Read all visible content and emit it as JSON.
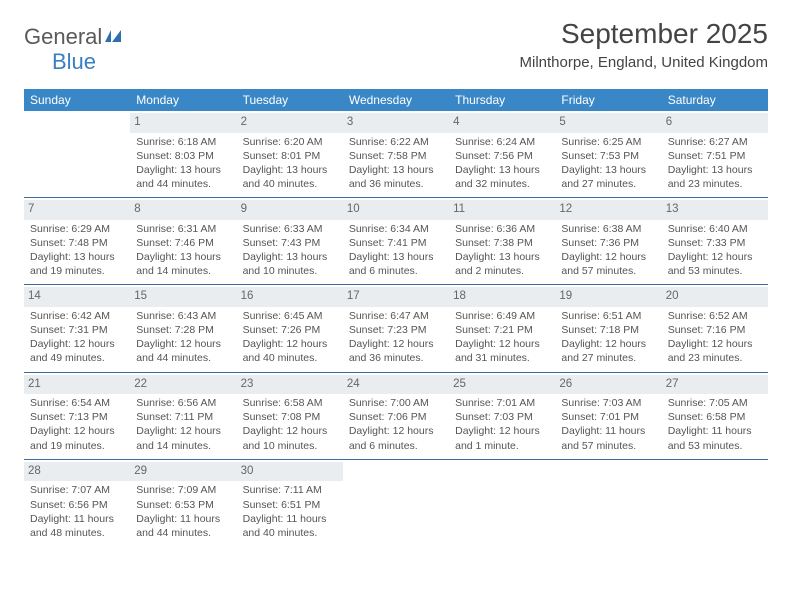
{
  "logo": {
    "text1": "General",
    "text2": "Blue"
  },
  "title": "September 2025",
  "location": "Milnthorpe, England, United Kingdom",
  "colors": {
    "header_bg": "#3a87c7",
    "header_fg": "#ffffff",
    "row_divider": "#3a6ea0",
    "daynum_bg": "#e9edf0",
    "text": "#555555",
    "logo_gray": "#5a5a5a",
    "logo_blue": "#3a7fc4"
  },
  "day_headers": [
    "Sunday",
    "Monday",
    "Tuesday",
    "Wednesday",
    "Thursday",
    "Friday",
    "Saturday"
  ],
  "weeks": [
    [
      {
        "n": "",
        "lines": []
      },
      {
        "n": "1",
        "lines": [
          "Sunrise: 6:18 AM",
          "Sunset: 8:03 PM",
          "Daylight: 13 hours and 44 minutes."
        ]
      },
      {
        "n": "2",
        "lines": [
          "Sunrise: 6:20 AM",
          "Sunset: 8:01 PM",
          "Daylight: 13 hours and 40 minutes."
        ]
      },
      {
        "n": "3",
        "lines": [
          "Sunrise: 6:22 AM",
          "Sunset: 7:58 PM",
          "Daylight: 13 hours and 36 minutes."
        ]
      },
      {
        "n": "4",
        "lines": [
          "Sunrise: 6:24 AM",
          "Sunset: 7:56 PM",
          "Daylight: 13 hours and 32 minutes."
        ]
      },
      {
        "n": "5",
        "lines": [
          "Sunrise: 6:25 AM",
          "Sunset: 7:53 PM",
          "Daylight: 13 hours and 27 minutes."
        ]
      },
      {
        "n": "6",
        "lines": [
          "Sunrise: 6:27 AM",
          "Sunset: 7:51 PM",
          "Daylight: 13 hours and 23 minutes."
        ]
      }
    ],
    [
      {
        "n": "7",
        "lines": [
          "Sunrise: 6:29 AM",
          "Sunset: 7:48 PM",
          "Daylight: 13 hours and 19 minutes."
        ]
      },
      {
        "n": "8",
        "lines": [
          "Sunrise: 6:31 AM",
          "Sunset: 7:46 PM",
          "Daylight: 13 hours and 14 minutes."
        ]
      },
      {
        "n": "9",
        "lines": [
          "Sunrise: 6:33 AM",
          "Sunset: 7:43 PM",
          "Daylight: 13 hours and 10 minutes."
        ]
      },
      {
        "n": "10",
        "lines": [
          "Sunrise: 6:34 AM",
          "Sunset: 7:41 PM",
          "Daylight: 13 hours and 6 minutes."
        ]
      },
      {
        "n": "11",
        "lines": [
          "Sunrise: 6:36 AM",
          "Sunset: 7:38 PM",
          "Daylight: 13 hours and 2 minutes."
        ]
      },
      {
        "n": "12",
        "lines": [
          "Sunrise: 6:38 AM",
          "Sunset: 7:36 PM",
          "Daylight: 12 hours and 57 minutes."
        ]
      },
      {
        "n": "13",
        "lines": [
          "Sunrise: 6:40 AM",
          "Sunset: 7:33 PM",
          "Daylight: 12 hours and 53 minutes."
        ]
      }
    ],
    [
      {
        "n": "14",
        "lines": [
          "Sunrise: 6:42 AM",
          "Sunset: 7:31 PM",
          "Daylight: 12 hours and 49 minutes."
        ]
      },
      {
        "n": "15",
        "lines": [
          "Sunrise: 6:43 AM",
          "Sunset: 7:28 PM",
          "Daylight: 12 hours and 44 minutes."
        ]
      },
      {
        "n": "16",
        "lines": [
          "Sunrise: 6:45 AM",
          "Sunset: 7:26 PM",
          "Daylight: 12 hours and 40 minutes."
        ]
      },
      {
        "n": "17",
        "lines": [
          "Sunrise: 6:47 AM",
          "Sunset: 7:23 PM",
          "Daylight: 12 hours and 36 minutes."
        ]
      },
      {
        "n": "18",
        "lines": [
          "Sunrise: 6:49 AM",
          "Sunset: 7:21 PM",
          "Daylight: 12 hours and 31 minutes."
        ]
      },
      {
        "n": "19",
        "lines": [
          "Sunrise: 6:51 AM",
          "Sunset: 7:18 PM",
          "Daylight: 12 hours and 27 minutes."
        ]
      },
      {
        "n": "20",
        "lines": [
          "Sunrise: 6:52 AM",
          "Sunset: 7:16 PM",
          "Daylight: 12 hours and 23 minutes."
        ]
      }
    ],
    [
      {
        "n": "21",
        "lines": [
          "Sunrise: 6:54 AM",
          "Sunset: 7:13 PM",
          "Daylight: 12 hours and 19 minutes."
        ]
      },
      {
        "n": "22",
        "lines": [
          "Sunrise: 6:56 AM",
          "Sunset: 7:11 PM",
          "Daylight: 12 hours and 14 minutes."
        ]
      },
      {
        "n": "23",
        "lines": [
          "Sunrise: 6:58 AM",
          "Sunset: 7:08 PM",
          "Daylight: 12 hours and 10 minutes."
        ]
      },
      {
        "n": "24",
        "lines": [
          "Sunrise: 7:00 AM",
          "Sunset: 7:06 PM",
          "Daylight: 12 hours and 6 minutes."
        ]
      },
      {
        "n": "25",
        "lines": [
          "Sunrise: 7:01 AM",
          "Sunset: 7:03 PM",
          "Daylight: 12 hours and 1 minute."
        ]
      },
      {
        "n": "26",
        "lines": [
          "Sunrise: 7:03 AM",
          "Sunset: 7:01 PM",
          "Daylight: 11 hours and 57 minutes."
        ]
      },
      {
        "n": "27",
        "lines": [
          "Sunrise: 7:05 AM",
          "Sunset: 6:58 PM",
          "Daylight: 11 hours and 53 minutes."
        ]
      }
    ],
    [
      {
        "n": "28",
        "lines": [
          "Sunrise: 7:07 AM",
          "Sunset: 6:56 PM",
          "Daylight: 11 hours and 48 minutes."
        ]
      },
      {
        "n": "29",
        "lines": [
          "Sunrise: 7:09 AM",
          "Sunset: 6:53 PM",
          "Daylight: 11 hours and 44 minutes."
        ]
      },
      {
        "n": "30",
        "lines": [
          "Sunrise: 7:11 AM",
          "Sunset: 6:51 PM",
          "Daylight: 11 hours and 40 minutes."
        ]
      },
      {
        "n": "",
        "lines": []
      },
      {
        "n": "",
        "lines": []
      },
      {
        "n": "",
        "lines": []
      },
      {
        "n": "",
        "lines": []
      }
    ]
  ]
}
